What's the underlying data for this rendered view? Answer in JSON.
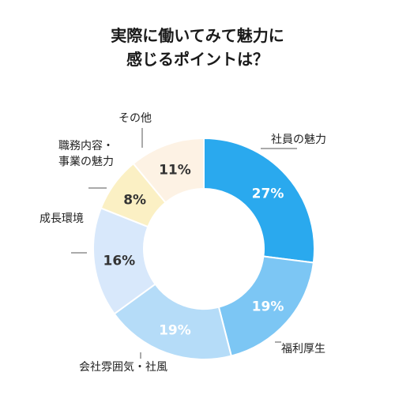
{
  "chart_data": {
    "type": "pie",
    "title_lines": [
      "実際に働いてみて魅力に",
      "感じるポイントは？"
    ],
    "slices": [
      {
        "label_lines": [
          "社員の魅力"
        ],
        "value": 27,
        "value_label": "27%",
        "color": "#2aa9ee",
        "text_color": "#ffffff"
      },
      {
        "label_lines": [
          "福利厚生"
        ],
        "value": 19,
        "value_label": "19%",
        "color": "#7cc6f4",
        "text_color": "#ffffff"
      },
      {
        "label_lines": [
          "会社雰囲気・社風"
        ],
        "value": 19,
        "value_label": "19%",
        "color": "#b5dcf8",
        "text_color": "#ffffff"
      },
      {
        "label_lines": [
          "成長環境"
        ],
        "value": 16,
        "value_label": "16%",
        "color": "#d8e8fb",
        "text_color": "#333333"
      },
      {
        "label_lines": [
          "職務内容・",
          "事業の魅力"
        ],
        "value": 8,
        "value_label": "8%",
        "color": "#fbf0c4",
        "text_color": "#333333"
      },
      {
        "label_lines": [
          "その他"
        ],
        "value": 11,
        "value_label": "11%",
        "color": "#fdf2e4",
        "text_color": "#333333"
      }
    ]
  }
}
